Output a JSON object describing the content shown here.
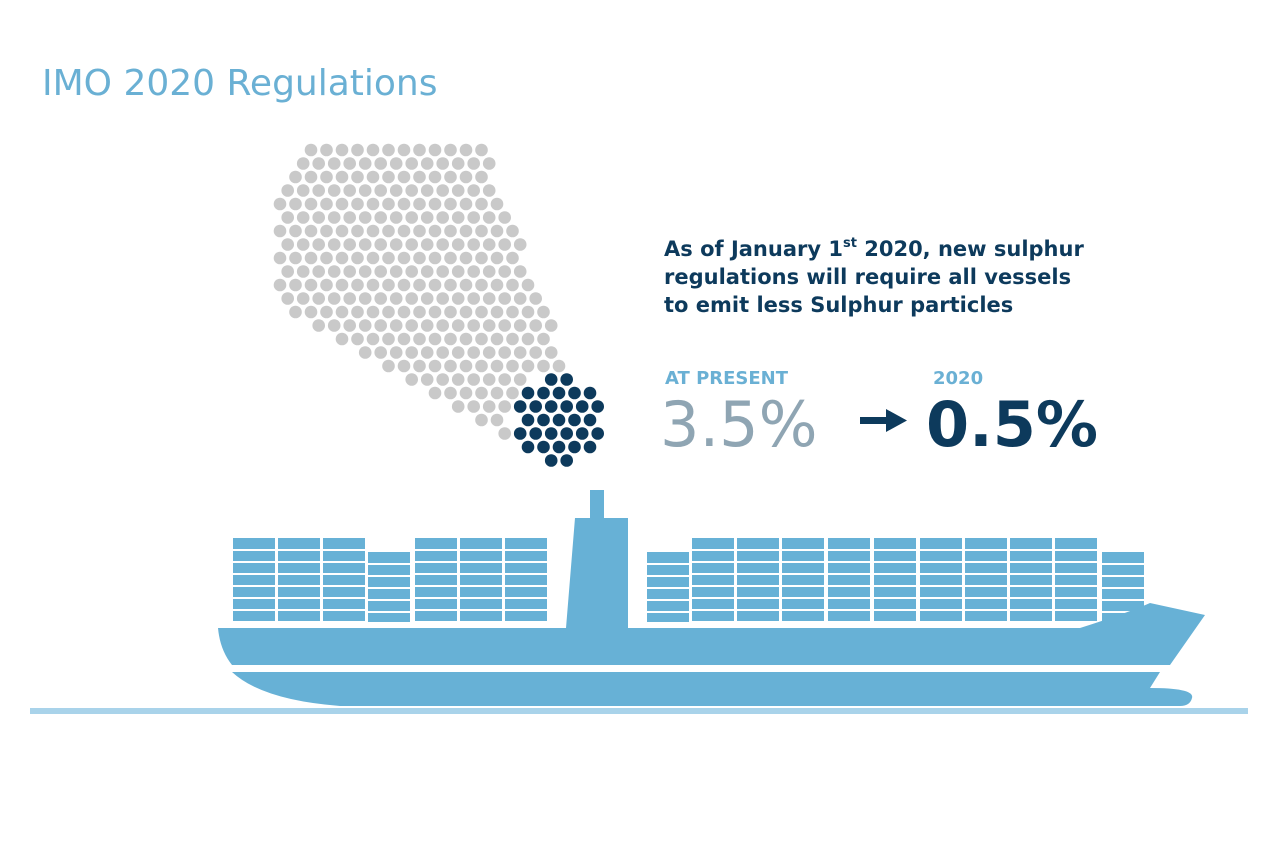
{
  "title": "IMO 2020 Regulations",
  "statement": [
    "As of January 1",
    "st",
    " 2020, new sulphur",
    "regulations will require all vessels",
    "to emit less Sulphur particles"
  ],
  "comparison": {
    "before_label": "AT PRESENT",
    "before_value": "3.5%",
    "after_label": "2020",
    "after_value": "0.5%"
  }
}
